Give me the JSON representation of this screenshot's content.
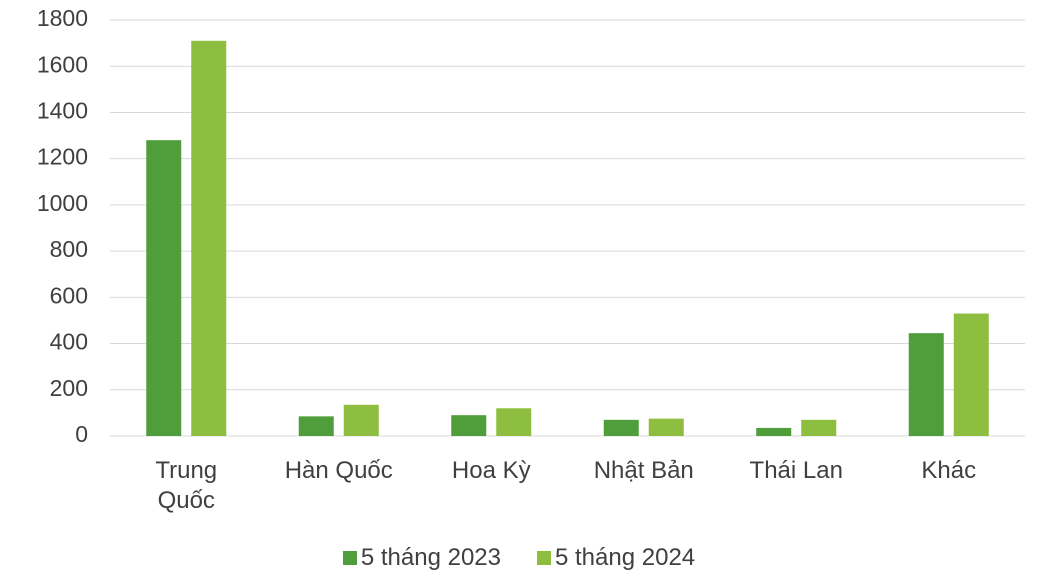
{
  "chart_data": {
    "type": "bar",
    "categories": [
      "Trung Quốc",
      "Hàn Quốc",
      "Hoa Kỳ",
      "Nhật Bản",
      "Thái Lan",
      "Khác"
    ],
    "series": [
      {
        "name": "5 tháng 2023",
        "color": "#4f9e3b",
        "values": [
          1280,
          85,
          90,
          70,
          35,
          445
        ]
      },
      {
        "name": "5 tháng 2024",
        "color": "#8dbe3f",
        "values": [
          1710,
          135,
          120,
          75,
          70,
          530
        ]
      }
    ],
    "ylim": [
      0,
      1800
    ],
    "yticks": [
      0,
      200,
      400,
      600,
      800,
      1000,
      1200,
      1400,
      1600,
      1800
    ],
    "grid": true
  }
}
